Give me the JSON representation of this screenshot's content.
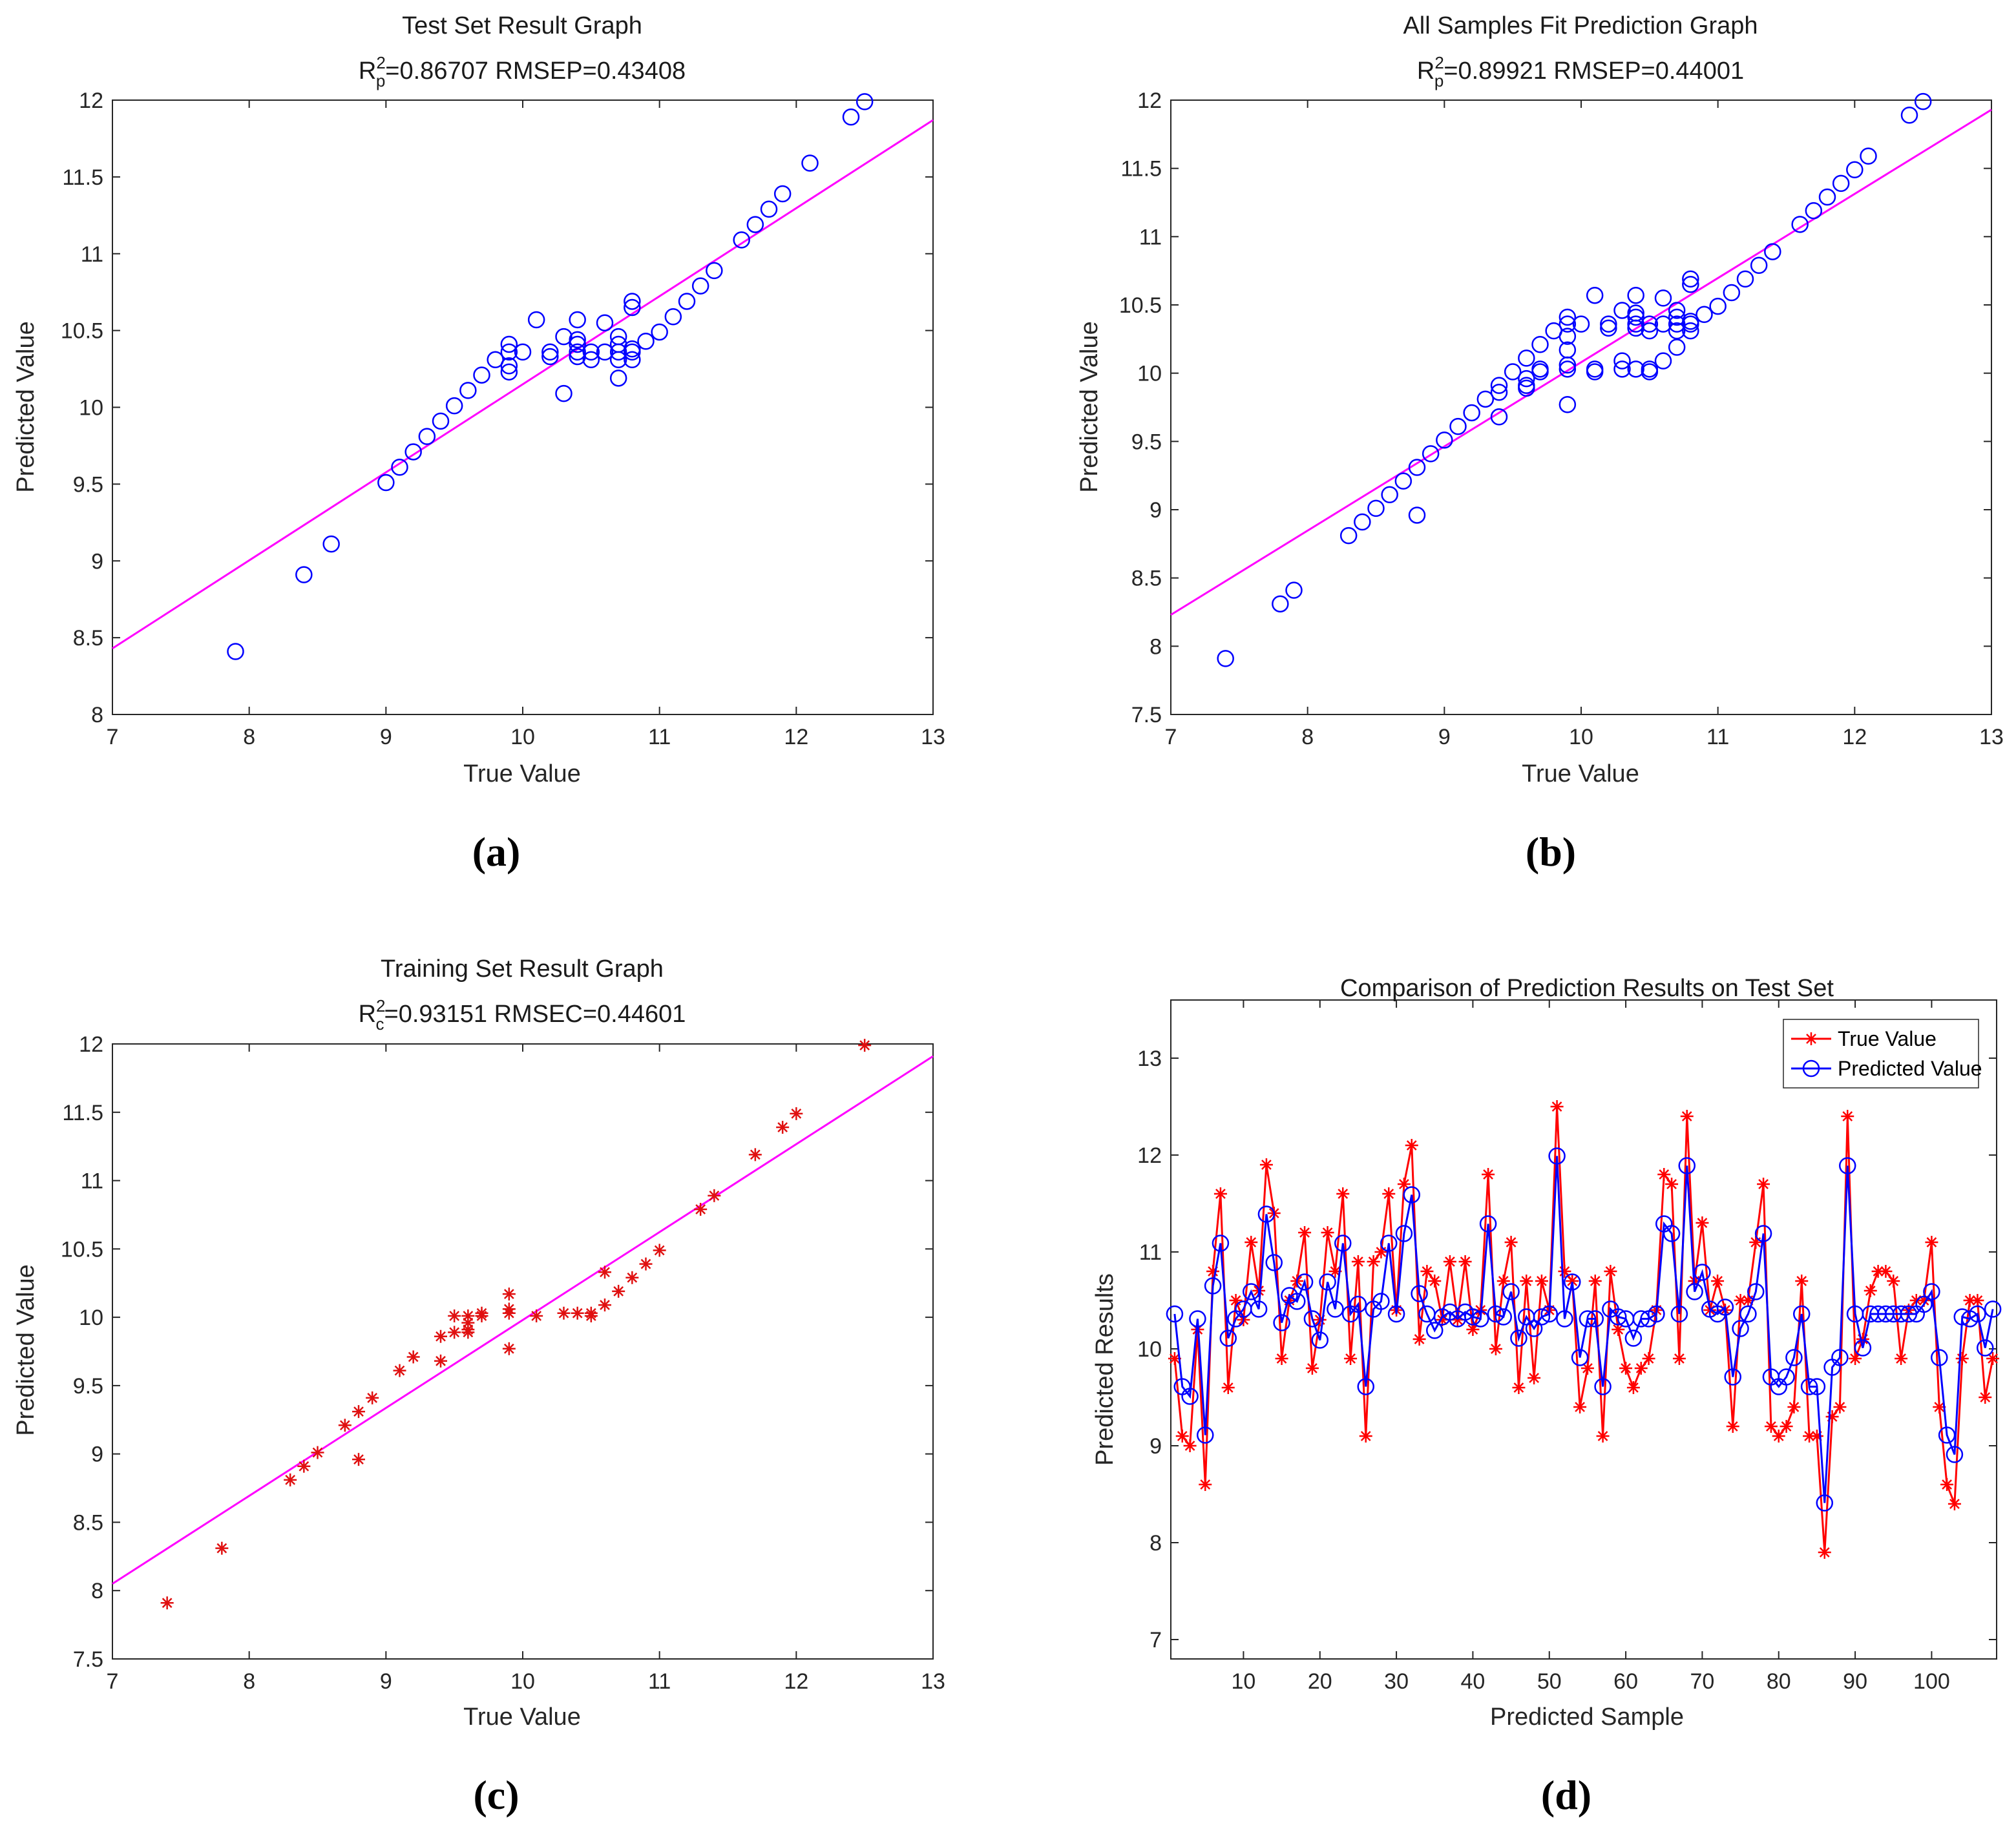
{
  "chart_data": [
    {
      "type": "scatter",
      "title": "Test Set Result Graph",
      "subtitle": {
        "prefix": "R",
        "sup": "2",
        "sub": "p",
        "rest": "=0.86707  RMSEP=0.43408"
      },
      "xlabel": "True Value",
      "ylabel": "Predicted Value",
      "xlim": [
        7,
        13
      ],
      "ylim": [
        8,
        12
      ],
      "xticks": [
        7,
        8,
        9,
        10,
        11,
        12,
        13
      ],
      "yticks": [
        8,
        8.5,
        9,
        9.5,
        10,
        10.5,
        11,
        11.5,
        12
      ],
      "marker": "circle",
      "marker_color": "#0000ff",
      "fit_line": {
        "x": [
          7,
          13
        ],
        "y": [
          8.43,
          11.87
        ],
        "color": "#ff00ff"
      },
      "points": [
        [
          7.9,
          8.41
        ],
        [
          8.4,
          8.91
        ],
        [
          8.6,
          9.11
        ],
        [
          9.0,
          9.51
        ],
        [
          9.1,
          9.61
        ],
        [
          9.2,
          9.71
        ],
        [
          9.3,
          9.81
        ],
        [
          9.4,
          9.91
        ],
        [
          9.5,
          10.01
        ],
        [
          9.6,
          10.11
        ],
        [
          9.7,
          10.21
        ],
        [
          9.8,
          10.31
        ],
        [
          9.9,
          10.36
        ],
        [
          9.9,
          10.41
        ],
        [
          9.9,
          10.27
        ],
        [
          9.9,
          10.23
        ],
        [
          10.0,
          10.36
        ],
        [
          10.1,
          10.57
        ],
        [
          10.2,
          10.36
        ],
        [
          10.2,
          10.33
        ],
        [
          10.3,
          10.46
        ],
        [
          10.3,
          10.09
        ],
        [
          10.4,
          10.36
        ],
        [
          10.4,
          10.41
        ],
        [
          10.4,
          10.57
        ],
        [
          10.4,
          10.44
        ],
        [
          10.4,
          10.33
        ],
        [
          10.5,
          10.36
        ],
        [
          10.5,
          10.31
        ],
        [
          10.6,
          10.36
        ],
        [
          10.6,
          10.55
        ],
        [
          10.7,
          10.46
        ],
        [
          10.7,
          10.41
        ],
        [
          10.7,
          10.36
        ],
        [
          10.7,
          10.31
        ],
        [
          10.7,
          10.19
        ],
        [
          10.8,
          10.36
        ],
        [
          10.8,
          10.31
        ],
        [
          10.8,
          10.38
        ],
        [
          10.8,
          10.65
        ],
        [
          10.8,
          10.69
        ],
        [
          10.9,
          10.43
        ],
        [
          11.0,
          10.49
        ],
        [
          11.1,
          10.59
        ],
        [
          11.2,
          10.69
        ],
        [
          11.3,
          10.79
        ],
        [
          11.4,
          10.89
        ],
        [
          11.6,
          11.09
        ],
        [
          11.7,
          11.19
        ],
        [
          11.8,
          11.29
        ],
        [
          11.9,
          11.39
        ],
        [
          12.1,
          11.59
        ],
        [
          12.4,
          11.89
        ],
        [
          12.5,
          11.99
        ]
      ]
    },
    {
      "type": "scatter",
      "title": "All Samples Fit Prediction Graph",
      "subtitle": {
        "prefix": "R",
        "sup": "2",
        "sub": "p",
        "rest": "=0.89921  RMSEP=0.44001"
      },
      "xlabel": "True Value",
      "ylabel": "Predicted Value",
      "xlim": [
        7,
        13
      ],
      "ylim": [
        7.5,
        12
      ],
      "xticks": [
        7,
        8,
        9,
        10,
        11,
        12,
        13
      ],
      "yticks": [
        7.5,
        8,
        8.5,
        9,
        9.5,
        10,
        10.5,
        11,
        11.5,
        12
      ],
      "marker": "circle",
      "marker_color": "#0000ff",
      "fit_line": {
        "x": [
          7,
          13
        ],
        "y": [
          8.23,
          11.93
        ],
        "color": "#ff00ff"
      },
      "points": [
        [
          7.4,
          7.91
        ],
        [
          7.8,
          8.31
        ],
        [
          7.9,
          8.41
        ],
        [
          8.3,
          8.81
        ],
        [
          8.4,
          8.91
        ],
        [
          8.5,
          9.01
        ],
        [
          8.6,
          9.11
        ],
        [
          8.7,
          9.21
        ],
        [
          8.8,
          9.31
        ],
        [
          8.8,
          8.96
        ],
        [
          8.9,
          9.41
        ],
        [
          9.0,
          9.51
        ],
        [
          9.1,
          9.61
        ],
        [
          9.2,
          9.71
        ],
        [
          9.3,
          9.81
        ],
        [
          9.4,
          9.91
        ],
        [
          9.4,
          9.86
        ],
        [
          9.4,
          9.68
        ],
        [
          9.5,
          10.01
        ],
        [
          9.6,
          10.11
        ],
        [
          9.6,
          9.96
        ],
        [
          9.6,
          9.91
        ],
        [
          9.6,
          9.89
        ],
        [
          9.7,
          10.21
        ],
        [
          9.7,
          10.03
        ],
        [
          9.7,
          10.01
        ],
        [
          9.8,
          10.31
        ],
        [
          9.9,
          10.41
        ],
        [
          9.9,
          10.36
        ],
        [
          9.9,
          10.27
        ],
        [
          9.9,
          10.17
        ],
        [
          9.9,
          10.06
        ],
        [
          9.9,
          10.03
        ],
        [
          9.9,
          9.77
        ],
        [
          10.0,
          10.36
        ],
        [
          10.1,
          10.57
        ],
        [
          10.1,
          10.03
        ],
        [
          10.1,
          10.01
        ],
        [
          10.2,
          10.36
        ],
        [
          10.2,
          10.33
        ],
        [
          10.3,
          10.46
        ],
        [
          10.3,
          10.09
        ],
        [
          10.3,
          10.03
        ],
        [
          10.4,
          10.57
        ],
        [
          10.4,
          10.44
        ],
        [
          10.4,
          10.41
        ],
        [
          10.4,
          10.36
        ],
        [
          10.4,
          10.33
        ],
        [
          10.4,
          10.03
        ],
        [
          10.5,
          10.36
        ],
        [
          10.5,
          10.31
        ],
        [
          10.5,
          10.03
        ],
        [
          10.5,
          10.01
        ],
        [
          10.6,
          10.55
        ],
        [
          10.6,
          10.36
        ],
        [
          10.6,
          10.09
        ],
        [
          10.7,
          10.46
        ],
        [
          10.7,
          10.41
        ],
        [
          10.7,
          10.36
        ],
        [
          10.7,
          10.31
        ],
        [
          10.7,
          10.19
        ],
        [
          10.8,
          10.69
        ],
        [
          10.8,
          10.65
        ],
        [
          10.8,
          10.38
        ],
        [
          10.8,
          10.36
        ],
        [
          10.8,
          10.31
        ],
        [
          10.9,
          10.43
        ],
        [
          11.0,
          10.49
        ],
        [
          11.1,
          10.59
        ],
        [
          11.2,
          10.69
        ],
        [
          11.3,
          10.79
        ],
        [
          11.4,
          10.89
        ],
        [
          11.6,
          11.09
        ],
        [
          11.7,
          11.19
        ],
        [
          11.8,
          11.29
        ],
        [
          11.9,
          11.39
        ],
        [
          12.0,
          11.49
        ],
        [
          12.1,
          11.59
        ],
        [
          12.4,
          11.89
        ],
        [
          12.5,
          11.99
        ]
      ]
    },
    {
      "type": "scatter",
      "title": "Training Set Result Graph",
      "subtitle": {
        "prefix": "R",
        "sup": "2",
        "sub": "c",
        "rest": "=0.93151  RMSEC=0.44601"
      },
      "xlabel": "True Value",
      "ylabel": "Predicted Value",
      "xlim": [
        7,
        13
      ],
      "ylim": [
        7.5,
        12
      ],
      "xticks": [
        7,
        8,
        9,
        10,
        11,
        12,
        13
      ],
      "yticks": [
        7.5,
        8,
        8.5,
        9,
        9.5,
        10,
        10.5,
        11,
        11.5,
        12
      ],
      "marker": "asterisk",
      "marker_color": "#e01010",
      "fit_line": {
        "x": [
          7,
          13
        ],
        "y": [
          8.05,
          11.91
        ],
        "color": "#ff00ff"
      },
      "points": [
        [
          7.4,
          7.91
        ],
        [
          7.8,
          8.31
        ],
        [
          8.3,
          8.81
        ],
        [
          8.4,
          8.91
        ],
        [
          8.5,
          9.01
        ],
        [
          8.7,
          9.21
        ],
        [
          8.8,
          9.31
        ],
        [
          8.8,
          8.96
        ],
        [
          8.9,
          9.41
        ],
        [
          9.1,
          9.61
        ],
        [
          9.2,
          9.71
        ],
        [
          9.4,
          9.86
        ],
        [
          9.4,
          9.68
        ],
        [
          9.5,
          10.01
        ],
        [
          9.5,
          9.89
        ],
        [
          9.6,
          10.01
        ],
        [
          9.6,
          9.96
        ],
        [
          9.6,
          9.91
        ],
        [
          9.6,
          9.89
        ],
        [
          9.7,
          10.03
        ],
        [
          9.7,
          10.01
        ],
        [
          9.9,
          10.17
        ],
        [
          9.9,
          10.06
        ],
        [
          9.9,
          10.03
        ],
        [
          9.9,
          9.77
        ],
        [
          10.1,
          10.01
        ],
        [
          10.3,
          10.03
        ],
        [
          10.4,
          10.03
        ],
        [
          10.5,
          10.03
        ],
        [
          10.5,
          10.01
        ],
        [
          10.6,
          10.33
        ],
        [
          10.6,
          10.09
        ],
        [
          10.7,
          10.19
        ],
        [
          10.8,
          10.29
        ],
        [
          10.9,
          10.39
        ],
        [
          11.0,
          10.49
        ],
        [
          11.3,
          10.79
        ],
        [
          11.4,
          10.89
        ],
        [
          11.7,
          11.19
        ],
        [
          11.9,
          11.39
        ],
        [
          12.0,
          11.49
        ],
        [
          12.5,
          11.99
        ]
      ]
    },
    {
      "type": "line",
      "title": "Comparison of Prediction Results on Test Set",
      "xlabel": "Predicted Sample",
      "ylabel": "Predicted Results",
      "xlim": [
        0.5,
        108.5
      ],
      "ylim": [
        6.8,
        13.6
      ],
      "xticks": [
        10,
        20,
        30,
        40,
        50,
        60,
        70,
        80,
        90,
        100
      ],
      "yticks": [
        7,
        8,
        9,
        10,
        11,
        12,
        13
      ],
      "legend": "top-right",
      "x": [
        1,
        2,
        3,
        4,
        5,
        6,
        7,
        8,
        9,
        10,
        11,
        12,
        13,
        14,
        15,
        16,
        17,
        18,
        19,
        20,
        21,
        22,
        23,
        24,
        25,
        26,
        27,
        28,
        29,
        30,
        31,
        32,
        33,
        34,
        35,
        36,
        37,
        38,
        39,
        40,
        41,
        42,
        43,
        44,
        45,
        46,
        47,
        48,
        49,
        50,
        51,
        52,
        53,
        54,
        55,
        56,
        57,
        58,
        59,
        60,
        61,
        62,
        63,
        64,
        65,
        66,
        67,
        68,
        69,
        70,
        71,
        72,
        73,
        74,
        75,
        76,
        77,
        78,
        79,
        80,
        81,
        82,
        83,
        84,
        85,
        86,
        87,
        88,
        89,
        90,
        91,
        92,
        93,
        94,
        95,
        96,
        97,
        98,
        99,
        100,
        101,
        102,
        103,
        104,
        105,
        106,
        107,
        108
      ],
      "series": [
        {
          "name": "True Value",
          "color": "#ff0000",
          "marker": "asterisk",
          "values": [
            9.9,
            9.1,
            9.0,
            10.2,
            8.6,
            10.8,
            11.6,
            9.6,
            10.5,
            10.3,
            11.1,
            10.6,
            11.9,
            11.4,
            9.9,
            10.5,
            10.7,
            11.2,
            9.8,
            10.3,
            11.2,
            10.8,
            11.6,
            9.9,
            10.9,
            9.1,
            10.9,
            11.0,
            11.6,
            10.4,
            11.7,
            12.1,
            10.1,
            10.8,
            10.7,
            10.3,
            10.9,
            10.3,
            10.9,
            10.2,
            10.4,
            11.8,
            10.0,
            10.7,
            11.1,
            9.6,
            10.7,
            9.7,
            10.7,
            10.4,
            12.5,
            10.8,
            10.7,
            9.4,
            9.8,
            10.7,
            9.1,
            10.8,
            10.2,
            9.8,
            9.6,
            9.8,
            9.9,
            10.4,
            11.8,
            11.7,
            9.9,
            12.4,
            10.7,
            11.3,
            10.4,
            10.7,
            10.4,
            9.2,
            10.5,
            10.5,
            11.1,
            11.7,
            9.2,
            9.1,
            9.2,
            9.4,
            10.7,
            9.1,
            9.1,
            7.9,
            9.3,
            9.4,
            12.4,
            9.9,
            10.1,
            10.6,
            10.8,
            10.8,
            10.7,
            9.9,
            10.4,
            10.5,
            10.5,
            11.1,
            9.4,
            8.6,
            8.4,
            9.9,
            10.5,
            10.5,
            9.5,
            9.9
          ]
        },
        {
          "name": "Predicted Value",
          "color": "#0000ff",
          "marker": "circle",
          "values": [
            10.36,
            9.61,
            9.51,
            10.31,
            9.11,
            10.65,
            11.09,
            10.11,
            10.31,
            10.41,
            10.59,
            10.41,
            11.39,
            10.89,
            10.27,
            10.55,
            10.49,
            10.69,
            10.31,
            10.09,
            10.69,
            10.41,
            11.09,
            10.36,
            10.46,
            9.61,
            10.41,
            10.49,
            11.09,
            10.36,
            11.19,
            11.59,
            10.57,
            10.36,
            10.19,
            10.33,
            10.38,
            10.31,
            10.38,
            10.33,
            10.31,
            11.29,
            10.36,
            10.33,
            10.59,
            10.11,
            10.33,
            10.21,
            10.33,
            10.36,
            11.99,
            10.31,
            10.69,
            9.91,
            10.31,
            10.31,
            9.61,
            10.41,
            10.33,
            10.31,
            10.11,
            10.31,
            10.31,
            10.36,
            11.29,
            11.19,
            10.36,
            11.89,
            10.59,
            10.79,
            10.41,
            10.36,
            10.43,
            9.71,
            10.21,
            10.36,
            10.59,
            11.19,
            9.71,
            9.61,
            9.71,
            9.91,
            10.36,
            9.61,
            9.61,
            8.41,
            9.81,
            9.91,
            11.89,
            10.36,
            10.01,
            10.36,
            10.36,
            10.36,
            10.36,
            10.36,
            10.36,
            10.36,
            10.46,
            10.59,
            9.91,
            9.11,
            8.91,
            10.33,
            10.31,
            10.36,
            10.01,
            10.41
          ]
        }
      ]
    }
  ],
  "subfigure_labels": [
    "(a)",
    "(b)",
    "(c)",
    "(d)"
  ]
}
